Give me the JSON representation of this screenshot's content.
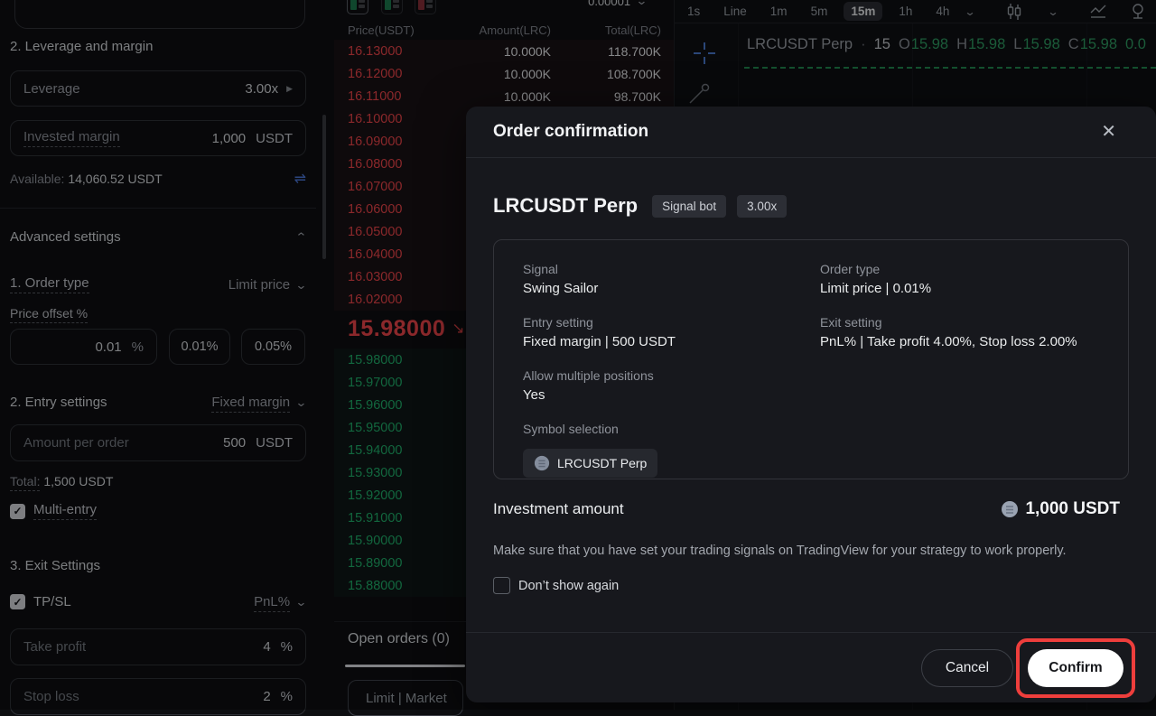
{
  "icons": {
    "close": "✕",
    "chevron_down": "⌄",
    "chevron_up": "⌃",
    "triangle_right": "▶",
    "transfer": "⇌",
    "gear": "⚙",
    "price_down_arrow": "↘",
    "dot_separator": "·",
    "check": "✓"
  },
  "colors": {
    "ask_red": "#ef454a",
    "bid_green": "#20b26c",
    "accent_blue": "#4d79dd",
    "annotation_red": "#ee3e3c"
  },
  "left_panel": {
    "section2_title": "2. Leverage and margin",
    "leverage_label": "Leverage",
    "leverage_value": "3.00x",
    "invested_margin_label": "Invested margin",
    "invested_margin_value": "1,000",
    "invested_margin_unit": "USDT",
    "available_label": "Available:",
    "available_value": "14,060.52 USDT",
    "advanced_settings_label": "Advanced settings",
    "order_type_label": "1. Order type",
    "order_type_value": "Limit price",
    "price_offset_label": "Price offset %",
    "price_offset_value": "0.01",
    "price_offset_unit": "%",
    "preset_1": "0.01%",
    "preset_2": "0.05%",
    "entry_settings_label": "2. Entry settings",
    "entry_settings_value": "Fixed margin",
    "amount_per_order_label": "Amount per order",
    "amount_per_order_value": "500",
    "amount_per_order_unit": "USDT",
    "total_label": "Total:",
    "total_value": "1,500 USDT",
    "multi_entry_label": "Multi-entry",
    "exit_settings_label": "3. Exit Settings",
    "tpsl_label": "TP/SL",
    "tpsl_mode": "PnL%",
    "take_profit_label": "Take profit",
    "take_profit_value": "4",
    "take_profit_unit": "%",
    "stop_loss_label": "Stop loss",
    "stop_loss_value": "2",
    "stop_loss_unit": "%"
  },
  "orderbook": {
    "precision": "0.00001",
    "headers": [
      "Price(USDT)",
      "Amount(LRC)",
      "Total(LRC)"
    ],
    "asks": [
      {
        "p": "16.13000",
        "a": "10.000K",
        "t": "118.700K"
      },
      {
        "p": "16.12000",
        "a": "10.000K",
        "t": "108.700K"
      },
      {
        "p": "16.11000",
        "a": "10.000K",
        "t": "98.700K"
      },
      {
        "p": "16.10000",
        "a": "",
        "t": ""
      },
      {
        "p": "16.09000",
        "a": "",
        "t": ""
      },
      {
        "p": "16.08000",
        "a": "",
        "t": ""
      },
      {
        "p": "16.07000",
        "a": "",
        "t": ""
      },
      {
        "p": "16.06000",
        "a": "",
        "t": ""
      },
      {
        "p": "16.05000",
        "a": "",
        "t": ""
      },
      {
        "p": "16.04000",
        "a": "",
        "t": ""
      },
      {
        "p": "16.03000",
        "a": "",
        "t": ""
      },
      {
        "p": "16.02000",
        "a": "",
        "t": ""
      }
    ],
    "last_price": "15.98000",
    "bids": [
      {
        "p": "15.98000",
        "a": "",
        "t": ""
      },
      {
        "p": "15.97000",
        "a": "",
        "t": ""
      },
      {
        "p": "15.96000",
        "a": "",
        "t": ""
      },
      {
        "p": "15.95000",
        "a": "",
        "t": ""
      },
      {
        "p": "15.94000",
        "a": "",
        "t": ""
      },
      {
        "p": "15.93000",
        "a": "",
        "t": ""
      },
      {
        "p": "15.92000",
        "a": "",
        "t": ""
      },
      {
        "p": "15.91000",
        "a": "",
        "t": ""
      },
      {
        "p": "15.90000",
        "a": "",
        "t": ""
      },
      {
        "p": "15.89000",
        "a": "",
        "t": ""
      },
      {
        "p": "15.88000",
        "a": "",
        "t": ""
      }
    ]
  },
  "bottom_tabs": {
    "open_orders": "Open orders (0)",
    "limit_market": "Limit | Market"
  },
  "chart": {
    "timeframes": [
      "1s",
      "Line",
      "1m",
      "5m",
      "15m",
      "1h",
      "4h"
    ],
    "selected_timeframe": "15m",
    "legend": {
      "symbol": "LRCUSDT Perp",
      "interval": "15",
      "pairs": [
        {
          "k": "O",
          "v": "15.98"
        },
        {
          "k": "H",
          "v": "15.98"
        },
        {
          "k": "L",
          "v": "15.98"
        },
        {
          "k": "C",
          "v": "15.98"
        }
      ],
      "extra": "0.0"
    }
  },
  "modal": {
    "title": "Order confirmation",
    "symbol": "LRCUSDT Perp",
    "badges": [
      "Signal bot",
      "3.00x"
    ],
    "card": {
      "left_fields": [
        {
          "label": "Signal",
          "value": "Swing Sailor"
        },
        {
          "label": "Entry setting",
          "value": "Fixed margin | 500 USDT"
        },
        {
          "label": "Allow multiple positions",
          "value": "Yes"
        }
      ],
      "right_fields": [
        {
          "label": "Order type",
          "value": "Limit price | 0.01%"
        },
        {
          "label": "Exit setting",
          "value": "PnL% | Take profit 4.00%, Stop loss 2.00%"
        }
      ],
      "symbol_selection_label": "Symbol selection",
      "symbol_chip": "LRCUSDT Perp"
    },
    "investment_label": "Investment amount",
    "investment_value": "1,000 USDT",
    "note": "Make sure that you have set your trading signals on TradingView for your strategy to work properly.",
    "dont_show_label": "Don’t show again",
    "cancel_label": "Cancel",
    "confirm_label": "Confirm"
  }
}
